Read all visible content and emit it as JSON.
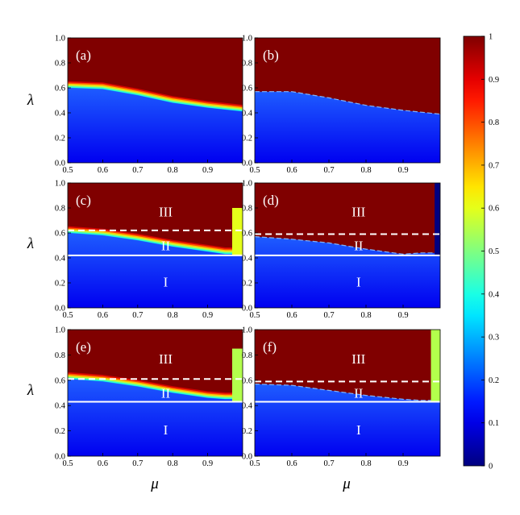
{
  "figure": {
    "ylabel": "λ",
    "xlabel": "μ",
    "colorbar": {
      "ticks": [
        "0",
        "0.1",
        "0.2",
        "0.3",
        "0.4",
        "0.5",
        "0.6",
        "0.7",
        "0.8",
        "0.9",
        "1"
      ],
      "range": [
        0,
        1
      ],
      "colormap": "jet",
      "colors": {
        "low": "#0000ff",
        "high": "#800000"
      }
    }
  },
  "chart_data": [
    {
      "type": "heatmap",
      "panel_label": "(a)",
      "xlim": [
        0.5,
        1.0
      ],
      "ylim": [
        0.0,
        1.0
      ],
      "xticks": [
        "0.5",
        "0.6",
        "0.7",
        "0.8",
        "0.9"
      ],
      "yticks": [
        "0.0",
        "0.2",
        "0.4",
        "0.6",
        "0.8",
        "1.0"
      ],
      "boundary": {
        "mu": [
          0.5,
          0.6,
          0.7,
          0.8,
          0.9,
          1.0
        ],
        "lambda": [
          0.6,
          0.59,
          0.54,
          0.48,
          0.44,
          0.41
        ],
        "transition": "smooth"
      },
      "region_labels": [],
      "dashed_line_lambda": null,
      "solid_line_lambda": null
    },
    {
      "type": "heatmap",
      "panel_label": "(b)",
      "xlim": [
        0.5,
        1.0
      ],
      "ylim": [
        0.0,
        1.0
      ],
      "xticks": [
        "0.5",
        "0.6",
        "0.7",
        "0.8",
        "0.9"
      ],
      "yticks": [
        "0.0",
        "0.2",
        "0.4",
        "0.6",
        "0.8",
        "1.0"
      ],
      "boundary": {
        "mu": [
          0.5,
          0.6,
          0.7,
          0.8,
          0.9,
          1.0
        ],
        "lambda": [
          0.57,
          0.57,
          0.52,
          0.46,
          0.42,
          0.39
        ],
        "transition": "sharp"
      },
      "region_labels": [],
      "dashed_line_lambda": null,
      "solid_line_lambda": null
    },
    {
      "type": "heatmap",
      "panel_label": "(c)",
      "xlim": [
        0.5,
        1.0
      ],
      "ylim": [
        0.0,
        1.0
      ],
      "xticks": [
        "0.5",
        "0.6",
        "0.7",
        "0.8",
        "0.9"
      ],
      "yticks": [
        "0.0",
        "0.2",
        "0.4",
        "0.6",
        "0.8",
        "1.0"
      ],
      "boundary": {
        "mu": [
          0.5,
          0.6,
          0.7,
          0.8,
          0.9,
          0.95
        ],
        "lambda": [
          0.6,
          0.58,
          0.54,
          0.49,
          0.45,
          0.43
        ],
        "transition": "smooth"
      },
      "edge_strip": {
        "mu_start": 0.97,
        "lambda_top": 0.8,
        "value": 0.6
      },
      "region_labels": [
        "III",
        "II",
        "I"
      ],
      "dashed_line_lambda": 0.62,
      "solid_line_lambda": 0.42
    },
    {
      "type": "heatmap",
      "panel_label": "(d)",
      "xlim": [
        0.5,
        1.0
      ],
      "ylim": [
        0.0,
        1.0
      ],
      "xticks": [
        "0.5",
        "0.6",
        "0.7",
        "0.8",
        "0.9"
      ],
      "yticks": [
        "0.0",
        "0.2",
        "0.4",
        "0.6",
        "0.8",
        "1.0"
      ],
      "boundary": {
        "mu": [
          0.5,
          0.6,
          0.7,
          0.8,
          0.9,
          0.95
        ],
        "lambda": [
          0.57,
          0.55,
          0.52,
          0.47,
          0.43,
          0.44
        ],
        "transition": "sharp"
      },
      "edge_strip": {
        "mu_start": 0.985,
        "lambda_top": 1.0,
        "value": 0.0
      },
      "region_labels": [
        "III",
        "II",
        "I"
      ],
      "dashed_line_lambda": 0.59,
      "solid_line_lambda": 0.42
    },
    {
      "type": "heatmap",
      "panel_label": "(e)",
      "xlim": [
        0.5,
        1.0
      ],
      "ylim": [
        0.0,
        1.0
      ],
      "xticks": [
        "0.5",
        "0.6",
        "0.7",
        "0.8",
        "0.9"
      ],
      "yticks": [
        "0.0",
        "0.2",
        "0.4",
        "0.6",
        "0.8",
        "1.0"
      ],
      "boundary": {
        "mu": [
          0.5,
          0.6,
          0.7,
          0.8,
          0.9,
          0.95
        ],
        "lambda": [
          0.61,
          0.59,
          0.55,
          0.5,
          0.46,
          0.45
        ],
        "transition": "smooth"
      },
      "edge_strip": {
        "mu_start": 0.97,
        "lambda_top": 0.85,
        "value": 0.55
      },
      "region_labels": [
        "III",
        "II",
        "I"
      ],
      "dashed_line_lambda": 0.61,
      "solid_line_lambda": 0.43
    },
    {
      "type": "heatmap",
      "panel_label": "(f)",
      "xlim": [
        0.5,
        1.0
      ],
      "ylim": [
        0.0,
        1.0
      ],
      "xticks": [
        "0.5",
        "0.6",
        "0.7",
        "0.8",
        "0.9"
      ],
      "yticks": [
        "0.0",
        "0.2",
        "0.4",
        "0.6",
        "0.8",
        "1.0"
      ],
      "boundary": {
        "mu": [
          0.5,
          0.6,
          0.7,
          0.8,
          0.9,
          0.95
        ],
        "lambda": [
          0.57,
          0.56,
          0.52,
          0.48,
          0.45,
          0.44
        ],
        "transition": "sharp"
      },
      "edge_strip": {
        "mu_start": 0.975,
        "lambda_top": 1.0,
        "value": 0.55
      },
      "region_labels": [
        "III",
        "II",
        "I"
      ],
      "dashed_line_lambda": 0.59,
      "solid_line_lambda": 0.43
    }
  ]
}
